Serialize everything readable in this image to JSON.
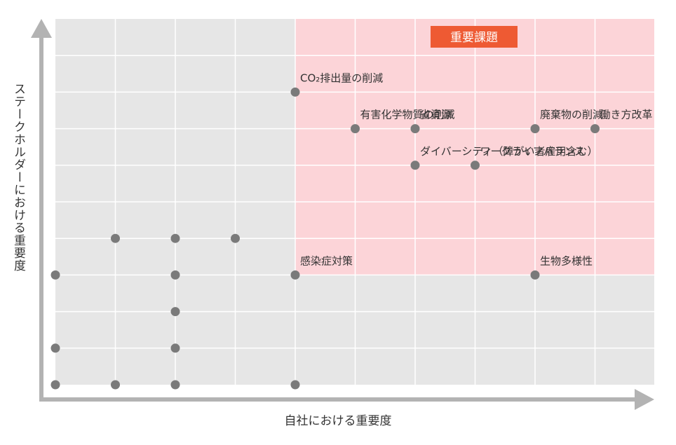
{
  "chart_data": {
    "type": "scatter",
    "xlabel": "自社における重要度",
    "ylabel": "ステークホルダーにおける重要度",
    "xlim": [
      0,
      10
    ],
    "ylim": [
      0,
      10
    ],
    "grid": true,
    "highlight_region": {
      "label": "重要課題",
      "x_from": 4,
      "x_to": 10,
      "y_from": 3,
      "y_to": 10,
      "color": "#fcd4d8",
      "label_color": "#ee5a33"
    },
    "points": [
      {
        "x": 4,
        "y": 8,
        "label": "CO₂排出量の削減"
      },
      {
        "x": 5,
        "y": 7,
        "label": "有害化学物質の削減"
      },
      {
        "x": 6,
        "y": 7,
        "label": "省資源"
      },
      {
        "x": 8,
        "y": 7,
        "label": "廃棄物の削減"
      },
      {
        "x": 9,
        "y": 7,
        "label": "働き方改革"
      },
      {
        "x": 6,
        "y": 6,
        "label": "ダイバーシティ（障がい者雇用含む）"
      },
      {
        "x": 7,
        "y": 6,
        "label": "ワークライフバランス"
      },
      {
        "x": 4,
        "y": 3,
        "label": "感染症対策"
      },
      {
        "x": 8,
        "y": 3,
        "label": "生物多様性"
      },
      {
        "x": 1,
        "y": 4
      },
      {
        "x": 2,
        "y": 4
      },
      {
        "x": 3,
        "y": 4
      },
      {
        "x": 0,
        "y": 3
      },
      {
        "x": 2,
        "y": 3
      },
      {
        "x": 2,
        "y": 2
      },
      {
        "x": 0,
        "y": 1
      },
      {
        "x": 2,
        "y": 1
      },
      {
        "x": 0,
        "y": 0
      },
      {
        "x": 1,
        "y": 0
      },
      {
        "x": 2,
        "y": 0
      },
      {
        "x": 4,
        "y": 0
      }
    ]
  },
  "colors": {
    "background_cell": "#e6e6e6",
    "grid_line": "#ffffff",
    "point": "#7a7a7a",
    "axis": "#b3b3b3",
    "label_text": "#333333"
  }
}
